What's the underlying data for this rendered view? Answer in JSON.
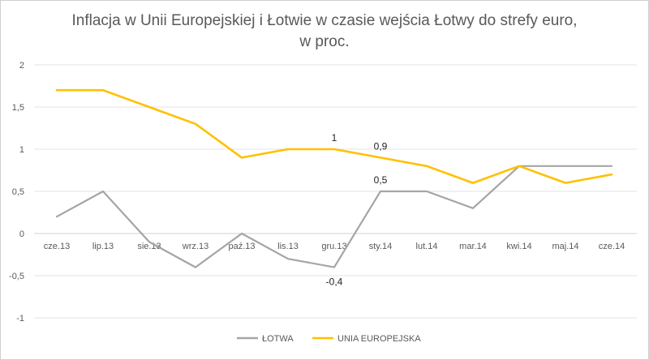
{
  "chart_data": {
    "type": "line",
    "title": "Inflacja w Unii Europejskiej i Łotwie w czasie wejścia Łotwy do strefy euro,",
    "subtitle": "w proc.",
    "categories": [
      "cze.13",
      "lip.13",
      "sie.13",
      "wrz.13",
      "paź.13",
      "lis.13",
      "gru.13",
      "sty.14",
      "lut.14",
      "mar.14",
      "kwi.14",
      "maj.14",
      "cze.14"
    ],
    "ylim": [
      -1,
      2
    ],
    "yticks": [
      -1,
      -0.5,
      0,
      0.5,
      1,
      1.5,
      2
    ],
    "ytick_labels": [
      "-1",
      "-0,5",
      "0",
      "0,5",
      "1",
      "1,5",
      "2"
    ],
    "grid": true,
    "legend_position": "bottom",
    "series": [
      {
        "name": "ŁOTWA",
        "color": "#a5a5a5",
        "values": [
          0.2,
          0.5,
          -0.1,
          -0.4,
          0.0,
          -0.3,
          -0.4,
          0.5,
          0.5,
          0.3,
          0.8,
          0.8,
          0.8
        ]
      },
      {
        "name": "UNIA EUROPEJSKA",
        "color": "#ffc000",
        "values": [
          1.7,
          1.7,
          1.5,
          1.3,
          0.9,
          1.0,
          1.0,
          0.9,
          0.8,
          0.6,
          0.8,
          0.6,
          0.7
        ]
      }
    ],
    "annotations": [
      {
        "series": 1,
        "index": 6,
        "text": "1",
        "pos": "above"
      },
      {
        "series": 1,
        "index": 7,
        "text": "0,9",
        "pos": "above"
      },
      {
        "series": 0,
        "index": 7,
        "text": "0,5",
        "pos": "above"
      },
      {
        "series": 0,
        "index": 6,
        "text": "-0,4",
        "pos": "below"
      }
    ]
  }
}
